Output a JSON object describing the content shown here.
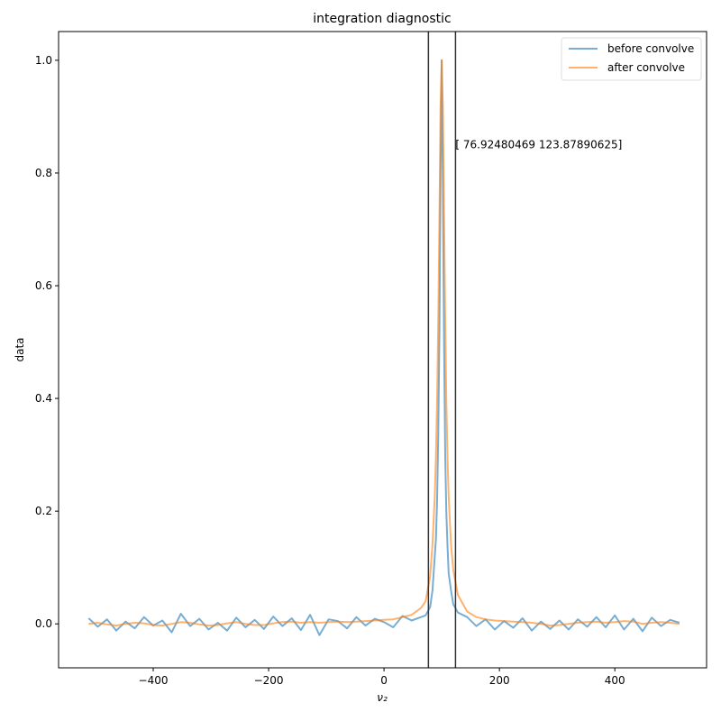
{
  "chart_data": {
    "type": "line",
    "title": "integration diagnostic",
    "xlabel": "ν₂",
    "ylabel": "data",
    "xlim": [
      -564,
      559
    ],
    "ylim": [
      -0.078,
      1.051
    ],
    "xticks": [
      -400,
      -200,
      0,
      200,
      400
    ],
    "xtick_labels": [
      "−400",
      "−200",
      "0",
      "200",
      "400"
    ],
    "yticks": [
      0.0,
      0.2,
      0.4,
      0.6,
      0.8,
      1.0
    ],
    "ytick_labels": [
      "0.0",
      "0.2",
      "0.4",
      "0.6",
      "0.8",
      "1.0"
    ],
    "grid": false,
    "legend_position": "top-right",
    "vlines": [
      76.92480469,
      123.87890625
    ],
    "vline_color": "#333333",
    "annotation": {
      "text": "[ 76.92480469 123.87890625]",
      "x": 123.87890625,
      "y": 0.85
    },
    "series": [
      {
        "name": "before convolve",
        "color": "#1f77b4",
        "alpha": 0.6,
        "points": [
          [
            -512,
            0.01
          ],
          [
            -496,
            -0.005
          ],
          [
            -480,
            0.008
          ],
          [
            -464,
            -0.012
          ],
          [
            -448,
            0.004
          ],
          [
            -432,
            -0.008
          ],
          [
            -416,
            0.012
          ],
          [
            -400,
            -0.003
          ],
          [
            -384,
            0.006
          ],
          [
            -368,
            -0.015
          ],
          [
            -352,
            0.018
          ],
          [
            -336,
            -0.004
          ],
          [
            -320,
            0.009
          ],
          [
            -304,
            -0.01
          ],
          [
            -288,
            0.002
          ],
          [
            -272,
            -0.012
          ],
          [
            -256,
            0.011
          ],
          [
            -240,
            -0.006
          ],
          [
            -224,
            0.007
          ],
          [
            -208,
            -0.009
          ],
          [
            -192,
            0.013
          ],
          [
            -176,
            -0.004
          ],
          [
            -160,
            0.01
          ],
          [
            -144,
            -0.011
          ],
          [
            -128,
            0.016
          ],
          [
            -112,
            -0.02
          ],
          [
            -96,
            0.008
          ],
          [
            -80,
            0.005
          ],
          [
            -64,
            -0.008
          ],
          [
            -48,
            0.012
          ],
          [
            -32,
            -0.003
          ],
          [
            -16,
            0.009
          ],
          [
            0,
            0.003
          ],
          [
            16,
            -0.006
          ],
          [
            32,
            0.014
          ],
          [
            48,
            0.006
          ],
          [
            64,
            0.012
          ],
          [
            72,
            0.015
          ],
          [
            80,
            0.03
          ],
          [
            84,
            0.06
          ],
          [
            88,
            0.12
          ],
          [
            90,
            0.15
          ],
          [
            92,
            0.22
          ],
          [
            94,
            0.34
          ],
          [
            96,
            0.52
          ],
          [
            98,
            0.8
          ],
          [
            100,
            1.0
          ],
          [
            102,
            0.78
          ],
          [
            104,
            0.5
          ],
          [
            106,
            0.3
          ],
          [
            108,
            0.2
          ],
          [
            110,
            0.14
          ],
          [
            112,
            0.09
          ],
          [
            116,
            0.06
          ],
          [
            120,
            0.035
          ],
          [
            128,
            0.02
          ],
          [
            144,
            0.012
          ],
          [
            160,
            -0.004
          ],
          [
            176,
            0.008
          ],
          [
            192,
            -0.01
          ],
          [
            208,
            0.005
          ],
          [
            224,
            -0.007
          ],
          [
            240,
            0.01
          ],
          [
            256,
            -0.012
          ],
          [
            272,
            0.004
          ],
          [
            288,
            -0.009
          ],
          [
            304,
            0.006
          ],
          [
            320,
            -0.01
          ],
          [
            336,
            0.008
          ],
          [
            352,
            -0.005
          ],
          [
            368,
            0.012
          ],
          [
            384,
            -0.006
          ],
          [
            400,
            0.015
          ],
          [
            416,
            -0.01
          ],
          [
            432,
            0.009
          ],
          [
            448,
            -0.013
          ],
          [
            464,
            0.011
          ],
          [
            480,
            -0.004
          ],
          [
            496,
            0.007
          ],
          [
            512,
            0.002
          ]
        ]
      },
      {
        "name": "after convolve",
        "color": "#ff7f0e",
        "alpha": 0.6,
        "points": [
          [
            -512,
            0.0
          ],
          [
            -496,
            0.002
          ],
          [
            -480,
            -0.001
          ],
          [
            -464,
            -0.003
          ],
          [
            -448,
            0.0
          ],
          [
            -432,
            0.002
          ],
          [
            -416,
            0.001
          ],
          [
            -400,
            -0.002
          ],
          [
            -384,
            -0.003
          ],
          [
            -368,
            0.0
          ],
          [
            -352,
            0.003
          ],
          [
            -336,
            0.002
          ],
          [
            -320,
            -0.001
          ],
          [
            -304,
            -0.003
          ],
          [
            -288,
            -0.002
          ],
          [
            -272,
            0.001
          ],
          [
            -256,
            0.003
          ],
          [
            -240,
            0.0
          ],
          [
            -224,
            -0.002
          ],
          [
            -208,
            -0.002
          ],
          [
            -192,
            0.001
          ],
          [
            -176,
            0.003
          ],
          [
            -160,
            0.004
          ],
          [
            -144,
            0.002
          ],
          [
            -128,
            0.003
          ],
          [
            -112,
            0.002
          ],
          [
            -96,
            0.003
          ],
          [
            -80,
            0.004
          ],
          [
            -64,
            0.003
          ],
          [
            -48,
            0.004
          ],
          [
            -32,
            0.005
          ],
          [
            -16,
            0.006
          ],
          [
            0,
            0.007
          ],
          [
            16,
            0.008
          ],
          [
            32,
            0.012
          ],
          [
            48,
            0.016
          ],
          [
            64,
            0.028
          ],
          [
            72,
            0.04
          ],
          [
            80,
            0.085
          ],
          [
            84,
            0.142
          ],
          [
            88,
            0.227
          ],
          [
            90,
            0.297
          ],
          [
            92,
            0.398
          ],
          [
            94,
            0.54
          ],
          [
            96,
            0.725
          ],
          [
            98,
            0.913
          ],
          [
            100,
            1.0
          ],
          [
            102,
            0.913
          ],
          [
            104,
            0.725
          ],
          [
            106,
            0.54
          ],
          [
            108,
            0.398
          ],
          [
            110,
            0.297
          ],
          [
            112,
            0.227
          ],
          [
            116,
            0.142
          ],
          [
            120,
            0.096
          ],
          [
            128,
            0.051
          ],
          [
            144,
            0.022
          ],
          [
            160,
            0.012
          ],
          [
            176,
            0.008
          ],
          [
            192,
            0.006
          ],
          [
            208,
            0.005
          ],
          [
            224,
            0.004
          ],
          [
            240,
            0.003
          ],
          [
            256,
            0.002
          ],
          [
            272,
            0.0
          ],
          [
            288,
            -0.003
          ],
          [
            304,
            -0.002
          ],
          [
            320,
            0.0
          ],
          [
            336,
            0.002
          ],
          [
            352,
            0.003
          ],
          [
            368,
            0.004
          ],
          [
            384,
            0.002
          ],
          [
            400,
            0.003
          ],
          [
            416,
            0.005
          ],
          [
            432,
            0.004
          ],
          [
            448,
            0.0
          ],
          [
            464,
            0.002
          ],
          [
            480,
            0.003
          ],
          [
            496,
            0.002
          ],
          [
            512,
            0.0
          ]
        ]
      }
    ]
  }
}
